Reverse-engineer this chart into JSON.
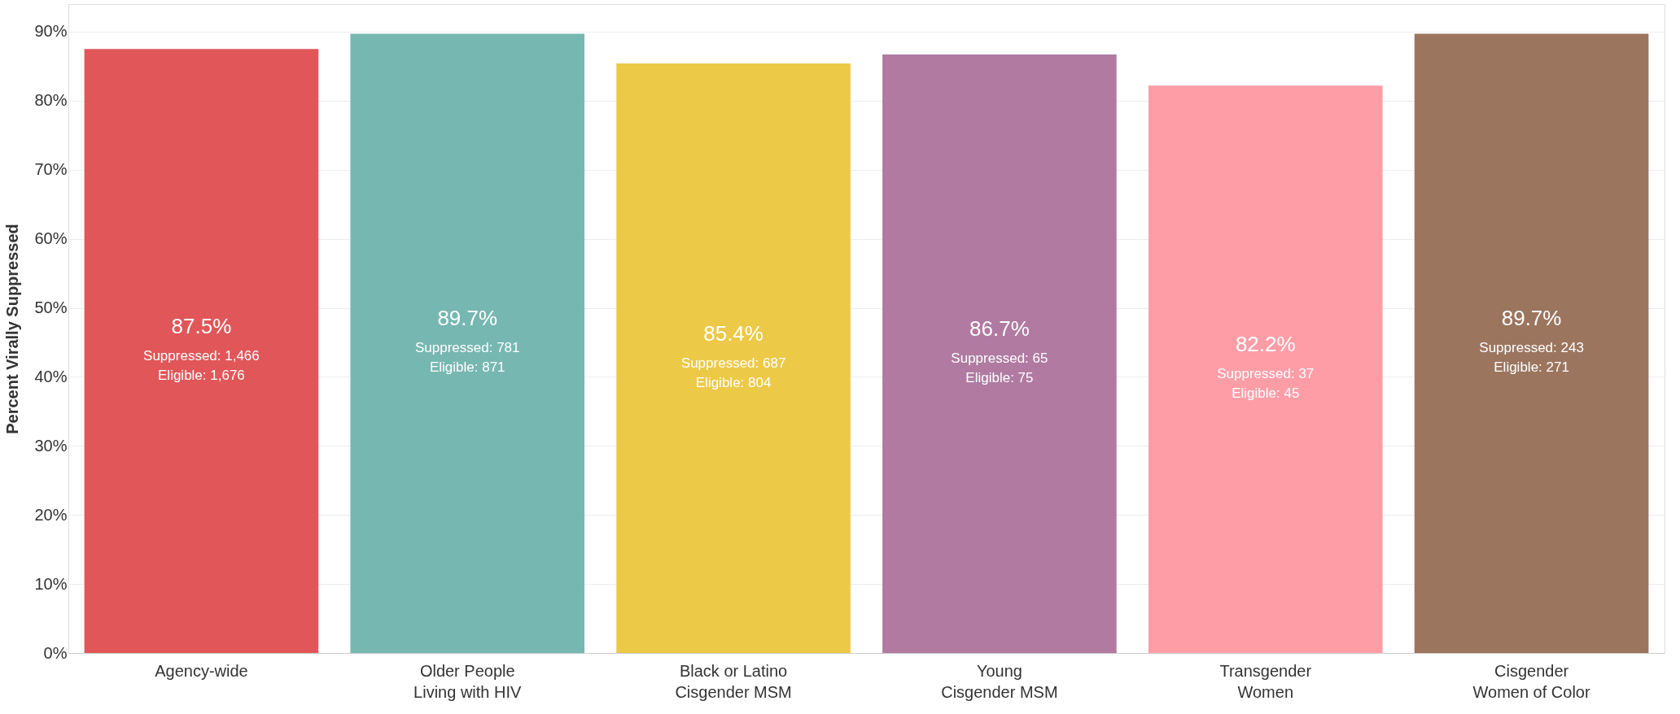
{
  "chart_data": {
    "type": "bar",
    "ylabel": "Percent Virally Suppressed",
    "categories": [
      "Agency-wide",
      "Older People\nLiving with HIV",
      "Black or Latino\nCisgender MSM",
      "Young\nCisgender MSM",
      "Transgender\nWomen",
      "Cisgender\nWomen of Color"
    ],
    "values": [
      87.5,
      89.7,
      85.4,
      86.7,
      82.2,
      89.7
    ],
    "colors": [
      "#e15759",
      "#76b7b2",
      "#edc948",
      "#b07aa1",
      "#ff9da7",
      "#9c755f"
    ],
    "value_labels": [
      "87.5%",
      "89.7%",
      "85.4%",
      "86.7%",
      "82.2%",
      "89.7%"
    ],
    "annotations": [
      "Suppressed: 1,466",
      "Eligible: 1,676",
      "Suppressed: 781",
      "Eligible: 871",
      "Suppressed: 687",
      "Eligible: 804",
      "Suppressed: 65",
      "Eligible: 75",
      "Suppressed: 37",
      "Eligible: 45",
      "Suppressed: 243",
      "Eligible: 271"
    ],
    "ylim": [
      0,
      94
    ],
    "yticks": [
      {
        "value": 0,
        "label": "0%"
      },
      {
        "value": 10,
        "label": "10%"
      },
      {
        "value": 20,
        "label": "20%"
      },
      {
        "value": 30,
        "label": "30%"
      },
      {
        "value": 40,
        "label": "40%"
      },
      {
        "value": 50,
        "label": "50%"
      },
      {
        "value": 60,
        "label": "60%"
      },
      {
        "value": 70,
        "label": "70%"
      },
      {
        "value": 80,
        "label": "80%"
      },
      {
        "value": 90,
        "label": "90%"
      }
    ],
    "grid": "y",
    "legend": false
  }
}
